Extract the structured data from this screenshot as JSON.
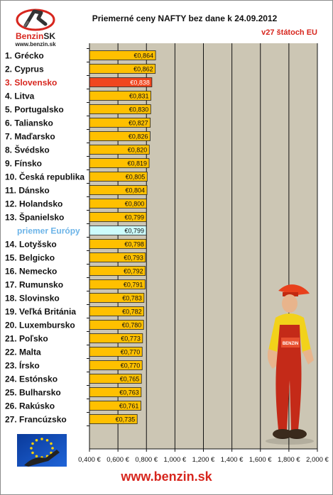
{
  "header": {
    "title": "Priemerné ceny NAFTY bez dane k 24.09.2012",
    "subtitle": "v27 štátoch EU",
    "logo_name": "Benzin",
    "logo_suffix": "SK",
    "logo_url": "www.benzin.sk"
  },
  "footer": {
    "url": "www.benzin.sk"
  },
  "colors": {
    "bar": "#ffc000",
    "highlight_bar": "#f0461e",
    "average_bar": "#ccfcfc",
    "highlight_text": "#d7261e",
    "average_text": "#6cb4e8",
    "plot_bg": "#ccc6b4"
  },
  "chart_data": {
    "type": "bar",
    "orientation": "horizontal",
    "title": "Priemerné ceny NAFTY bez dane k 24.09.2012",
    "subtitle": "v27 štátoch EU",
    "xlim": [
      0.4,
      2.0
    ],
    "grid": true,
    "x_ticks": [
      "0,400 €",
      "0,600 €",
      "0,800 €",
      "1,000 €",
      "1,200 €",
      "1,400 €",
      "1,600 €",
      "1,800 €",
      "2,000 €"
    ],
    "tick_values": [
      0.4,
      0.6,
      0.8,
      1.0,
      1.2,
      1.4,
      1.6,
      1.8,
      2.0
    ],
    "categories": [
      "1. Grécko",
      "2. Cyprus",
      "3. Slovensko",
      "4. Litva",
      "5. Portugalsko",
      "6. Taliansko",
      "7. Maďarsko",
      "8. Švédsko",
      "9. Fínsko",
      "10. Česká republika",
      "11. Dánsko",
      "12. Holandsko",
      "13. Španielsko",
      "priemer Európy",
      "14. Lotyšsko",
      "15. Belgicko",
      "16. Nemecko",
      "17. Rumunsko",
      "18. Slovinsko",
      "19. Veľká Británia",
      "20. Luxembursko",
      "21. Poľsko",
      "22. Malta",
      "23. Írsko",
      "24. Estónsko",
      "25. Bulharsko",
      "26. Rakúsko",
      "27. Francúzsko"
    ],
    "values": [
      0.864,
      0.862,
      0.838,
      0.831,
      0.83,
      0.827,
      0.826,
      0.82,
      0.819,
      0.805,
      0.804,
      0.8,
      0.799,
      0.799,
      0.798,
      0.793,
      0.792,
      0.791,
      0.783,
      0.782,
      0.78,
      0.773,
      0.77,
      0.77,
      0.765,
      0.763,
      0.761,
      0.735
    ],
    "value_labels": [
      "€0,864",
      "€0,862",
      "€0,838",
      "€0,831",
      "€0,830",
      "€0,827",
      "€0,826",
      "€0,820",
      "€0,819",
      "€0,805",
      "€0,804",
      "€0,800",
      "€0,799",
      "€0,799",
      "€0,798",
      "€0,793",
      "€0,792",
      "€0,791",
      "€0,783",
      "€0,782",
      "€0,780",
      "€0,773",
      "€0,770",
      "€0,770",
      "€0,765",
      "€0,763",
      "€0,761",
      "€0,735"
    ],
    "highlight_category": "3. Slovensko",
    "average_category": "priemer Európy"
  }
}
